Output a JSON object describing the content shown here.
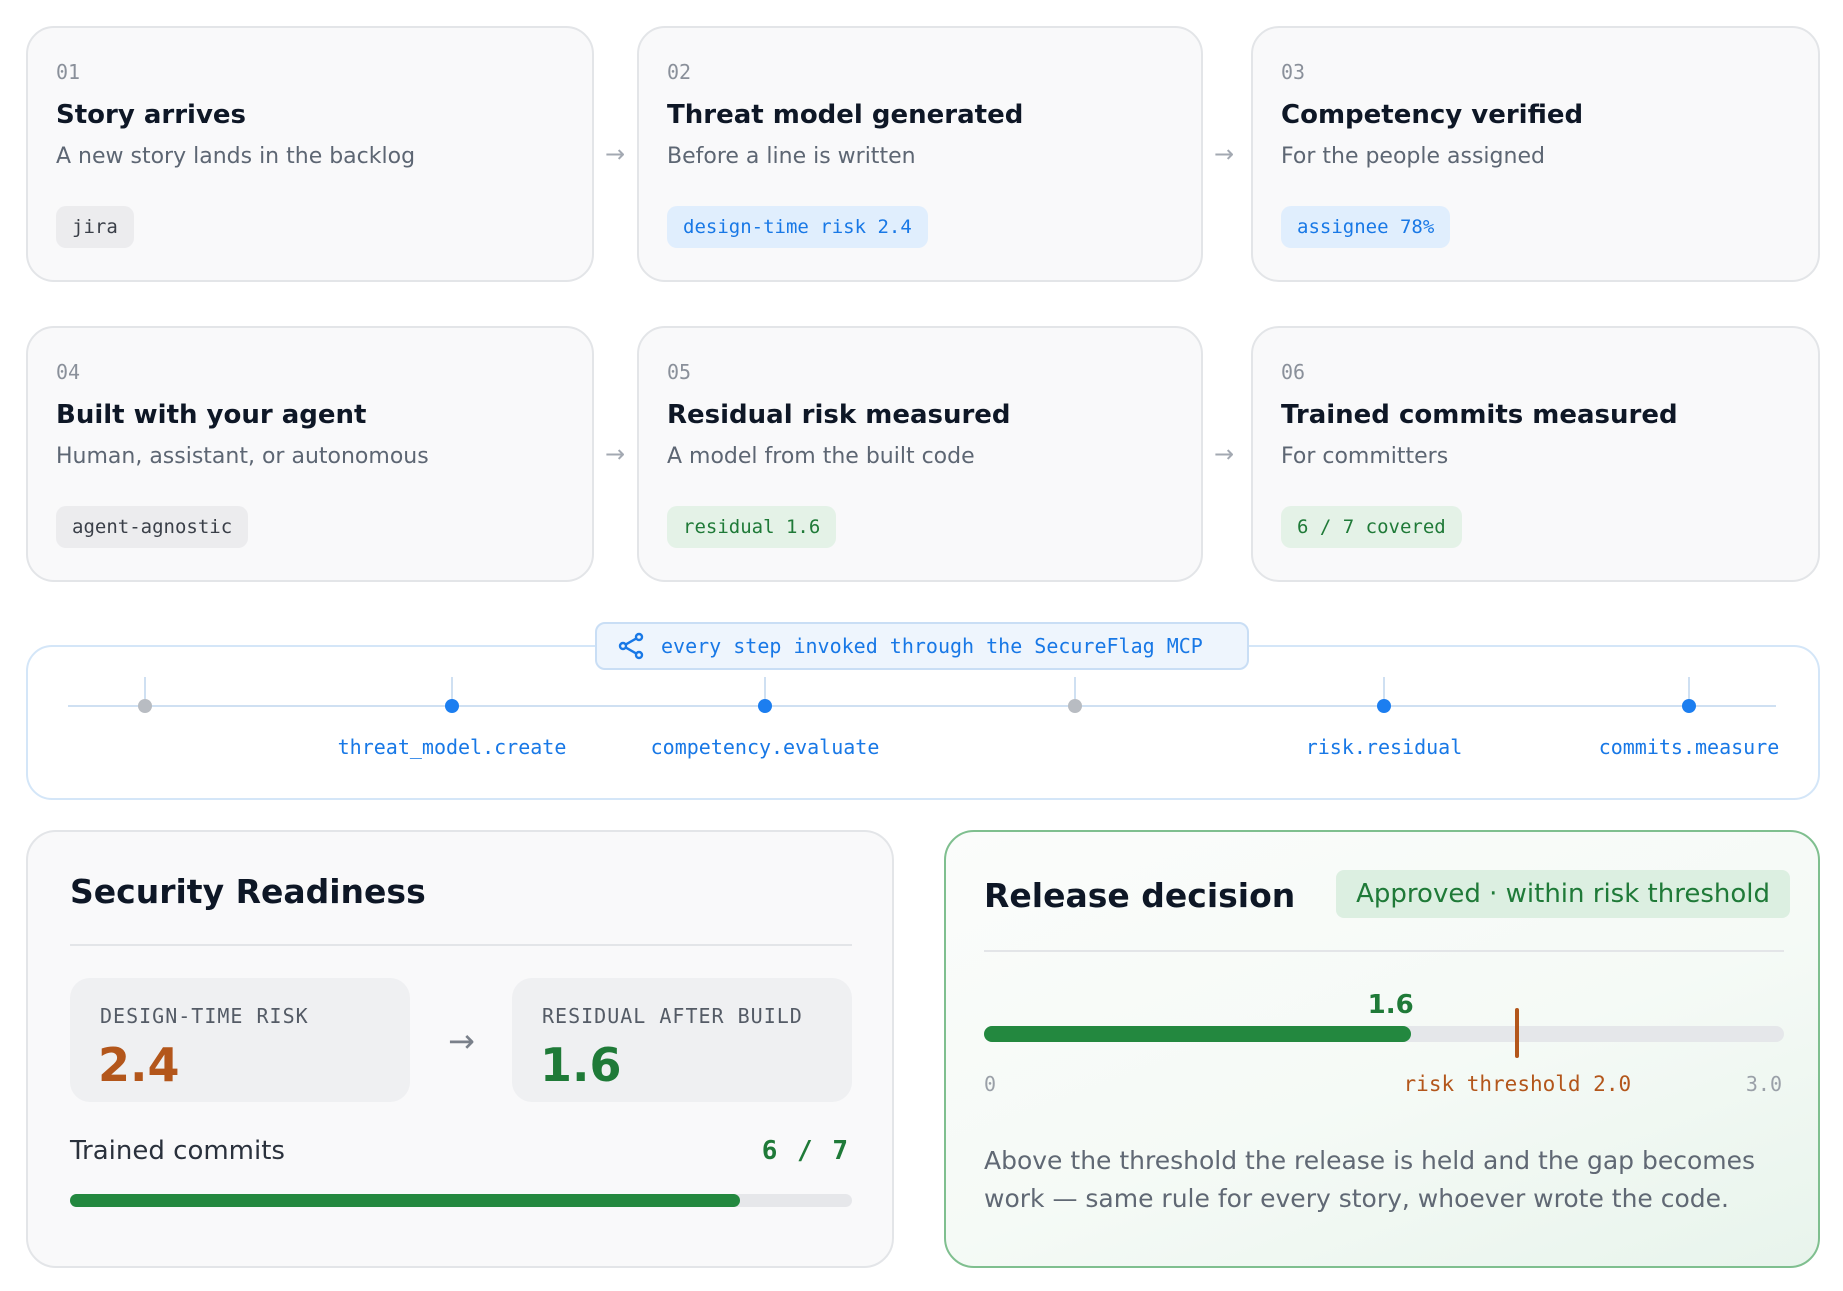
{
  "steps": [
    {
      "num": "01",
      "title": "Story arrives",
      "subtitle": "A new story lands in the backlog",
      "tag": "jira",
      "tag_color": "gray"
    },
    {
      "num": "02",
      "title": "Threat model generated",
      "subtitle": "Before a line is written",
      "tag": "design-time risk 2.4",
      "tag_color": "blue"
    },
    {
      "num": "03",
      "title": "Competency verified",
      "subtitle": "For the people assigned",
      "tag": "assignee 78%",
      "tag_color": "blue"
    },
    {
      "num": "04",
      "title": "Built with your agent",
      "subtitle": "Human, assistant, or autonomous",
      "tag": "agent-agnostic",
      "tag_color": "gray"
    },
    {
      "num": "05",
      "title": "Residual risk measured",
      "subtitle": "A model from the built code",
      "tag": "residual 1.6",
      "tag_color": "green"
    },
    {
      "num": "06",
      "title": "Trained commits measured",
      "subtitle": "For committers",
      "tag": "6 / 7 covered",
      "tag_color": "green"
    }
  ],
  "mcp": {
    "label": "every step invoked through the SecureFlag MCP",
    "icon": "share-icon",
    "nodes": [
      {
        "label": "",
        "active": false
      },
      {
        "label": "threat_model.create",
        "active": true
      },
      {
        "label": "competency.evaluate",
        "active": true
      },
      {
        "label": "",
        "active": false
      },
      {
        "label": "risk.residual",
        "active": true
      },
      {
        "label": "commits.measure",
        "active": true
      }
    ]
  },
  "readiness": {
    "title": "Security Readiness",
    "design_label": "DESIGN-TIME RISK",
    "design_value": "2.4",
    "residual_label": "RESIDUAL AFTER BUILD",
    "residual_value": "1.6",
    "commits_label": "Trained commits",
    "commits_value": "6 / 7",
    "commits_fraction": 0.857
  },
  "release": {
    "title": "Release decision",
    "badge": "Approved · within risk threshold",
    "current_label": "1.6",
    "current": 1.6,
    "threshold": 2.0,
    "scale_min": 0,
    "scale_max": 3.0,
    "min_label": "0",
    "max_label": "3.0",
    "threshold_label": "risk threshold 2.0",
    "note": "Above the threshold the release is held and the gap becomes work — same rule for every story, whoever wrote the code."
  },
  "colors": {
    "accent_blue": "#1878e6",
    "approve_green": "#1f7a38",
    "risk_orange": "#b3561b"
  }
}
